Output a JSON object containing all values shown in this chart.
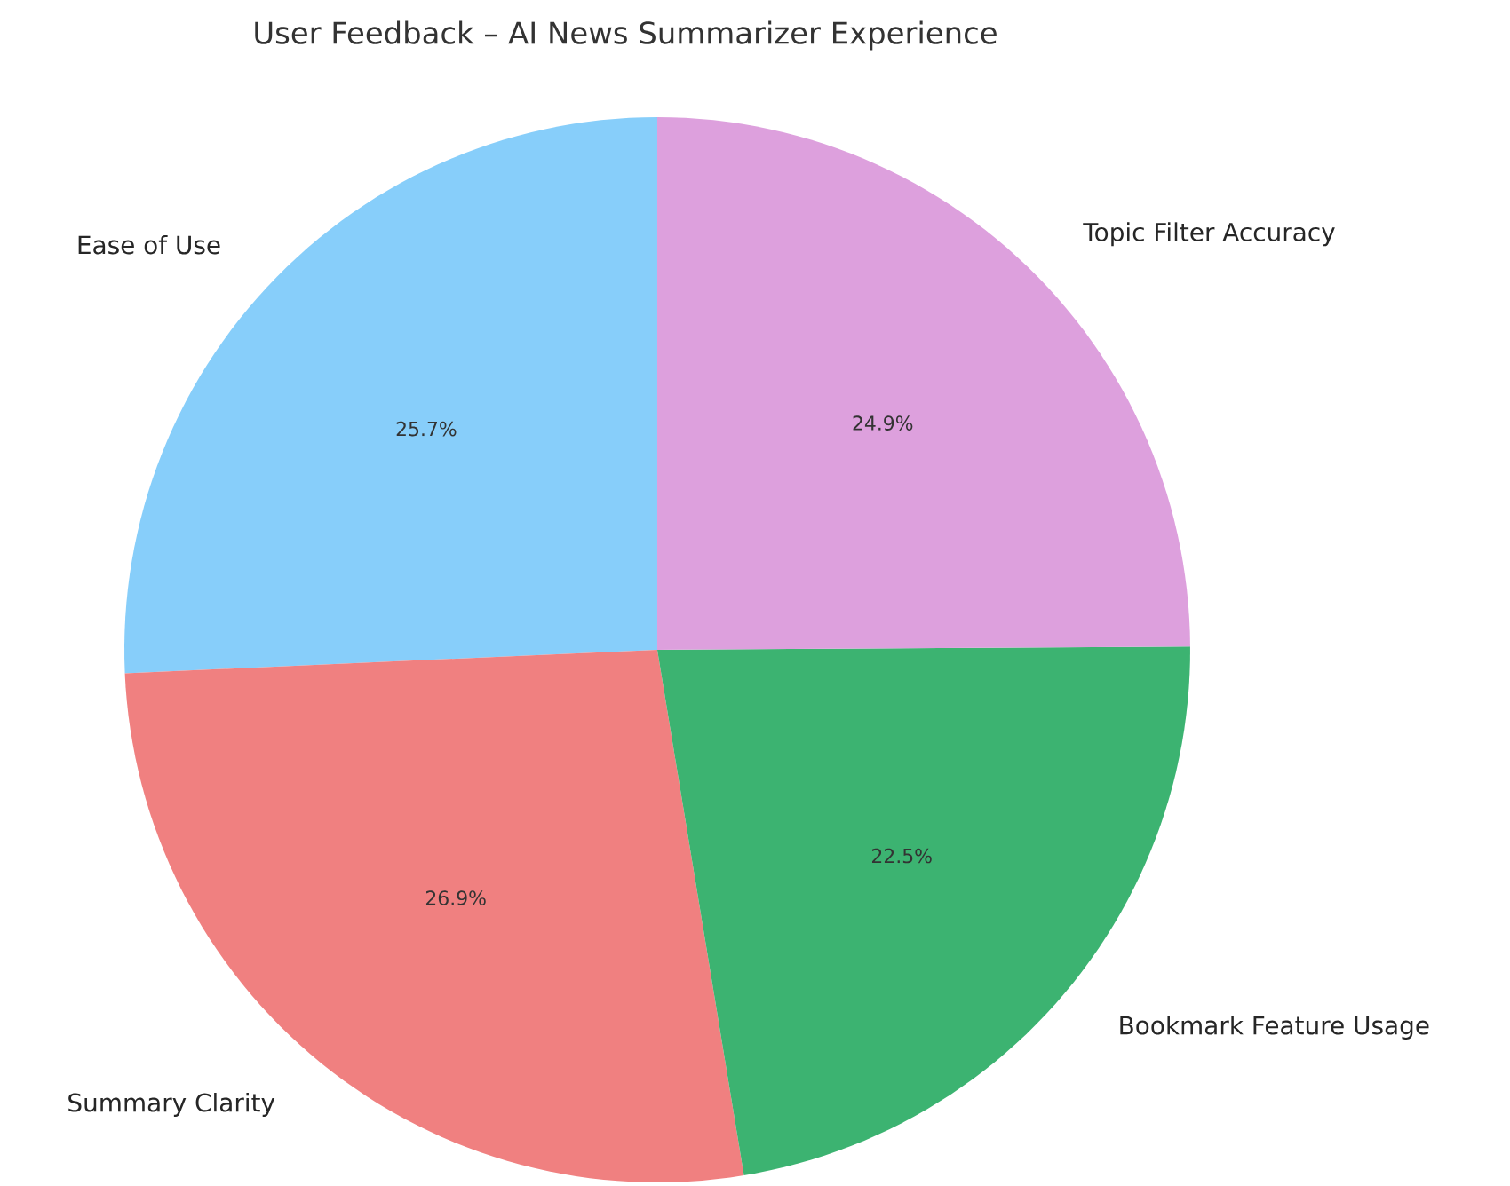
{
  "chart_data": {
    "type": "pie",
    "title": "User Feedback – AI News Summarizer Experience",
    "categories": [
      "Ease of Use",
      "Summary Clarity",
      "Bookmark Feature Usage",
      "Topic Filter Accuracy"
    ],
    "values": [
      25.7,
      26.9,
      22.5,
      24.9
    ],
    "colors": [
      "#87cefa",
      "#f08080",
      "#3cb371",
      "#dda0dd"
    ],
    "value_labels": [
      "25.7%",
      "26.9%",
      "22.5%",
      "24.9%"
    ]
  }
}
